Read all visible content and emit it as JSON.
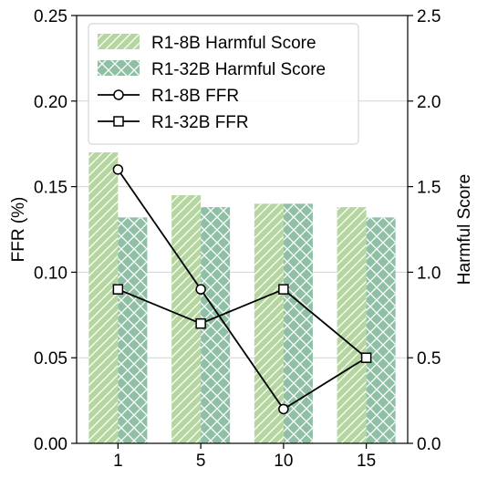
{
  "chart_data": {
    "type": "bar",
    "categories": [
      "1",
      "5",
      "10",
      "15"
    ],
    "bar_series": [
      {
        "name": "R1-8B Harmful Score",
        "values": [
          1.7,
          1.45,
          1.4,
          1.38
        ],
        "color": "#b5d6a0",
        "hatch": "diagonal"
      },
      {
        "name": "R1-32B Harmful Score",
        "values": [
          1.32,
          1.38,
          1.4,
          1.32
        ],
        "color": "#8fbfa4",
        "hatch": "cross"
      }
    ],
    "line_series": [
      {
        "name": "R1-8B FFR",
        "values": [
          0.16,
          0.09,
          0.02,
          0.05
        ],
        "marker": "circle",
        "color": "#000000"
      },
      {
        "name": "R1-32B FFR",
        "values": [
          0.09,
          0.07,
          0.09,
          0.05
        ],
        "marker": "square",
        "color": "#000000"
      }
    ],
    "xlabel": "",
    "ylabel_left": "FFR (%)",
    "ylabel_right": "Harmful Score",
    "ylim_left": [
      0,
      0.25
    ],
    "ylim_right": [
      0,
      2.5
    ],
    "yticks_left": [
      "0.00",
      "0.05",
      "0.10",
      "0.15",
      "0.20",
      "0.25"
    ],
    "yticks_right": [
      "0.0",
      "0.5",
      "1.0",
      "1.5",
      "2.0",
      "2.5"
    ],
    "grid": "horizontal",
    "legend_position": "top-left"
  }
}
